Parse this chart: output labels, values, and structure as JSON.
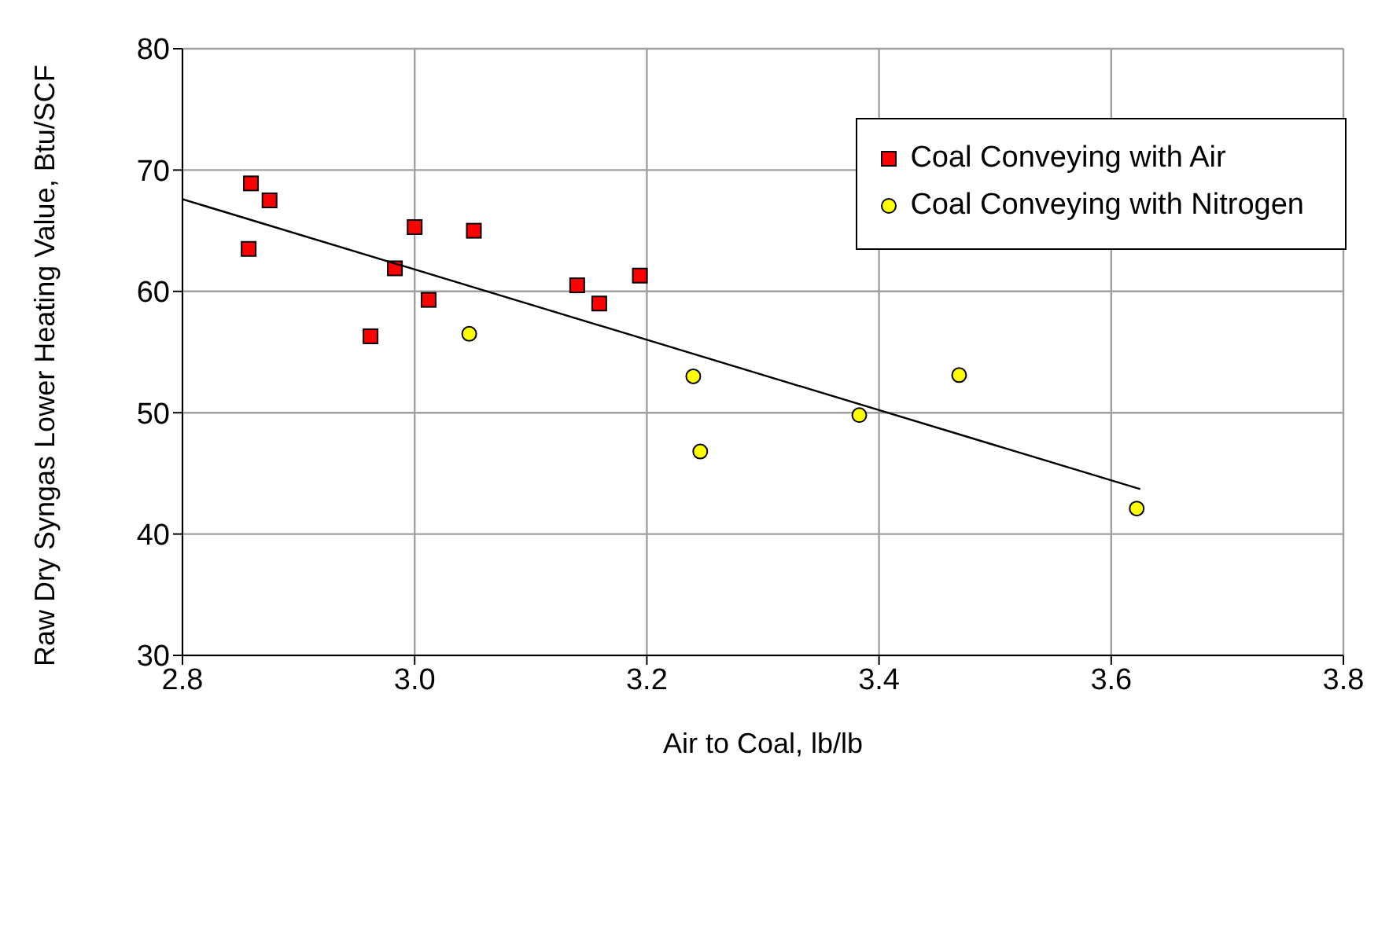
{
  "chart_data": {
    "type": "scatter",
    "xlabel": "Air to Coal, lb/lb",
    "ylabel": "Raw Dry Syngas Lower Heating Value, Btu/SCF",
    "xlim": [
      2.8,
      3.8
    ],
    "xticks": [
      {
        "value": 2.8,
        "label": "2.8"
      },
      {
        "value": 3.0,
        "label": "3.0"
      },
      {
        "value": 3.2,
        "label": "3.2"
      },
      {
        "value": 3.4,
        "label": "3.4"
      },
      {
        "value": 3.6,
        "label": "3.6"
      },
      {
        "value": 3.8,
        "label": "3.8"
      }
    ],
    "ylim": [
      30,
      80
    ],
    "yticks": [
      30,
      40,
      50,
      60,
      70,
      80
    ],
    "grid": true,
    "legend": "top right",
    "series": [
      {
        "name": "Coal Conveying with Air",
        "color": "#ff0000",
        "marker": "square",
        "x": [
          2.859,
          2.875,
          2.857,
          3.0,
          3.051,
          2.983,
          3.012,
          2.962,
          3.14,
          3.159,
          3.194
        ],
        "values": [
          68.9,
          67.5,
          63.5,
          65.3,
          65.0,
          61.9,
          59.3,
          56.3,
          60.5,
          59.0,
          61.3
        ]
      },
      {
        "name": "Coal Conveying with Nitrogen",
        "color": "#ffff00",
        "marker": "circle",
        "x": [
          3.047,
          3.24,
          3.246,
          3.383,
          3.469,
          3.622
        ],
        "values": [
          56.5,
          53.0,
          46.8,
          49.8,
          53.1,
          42.1
        ]
      },
      {
        "type": "line",
        "color": "#000000",
        "marker": "none",
        "x": [
          2.8,
          3.625
        ],
        "values": [
          67.6,
          43.7
        ]
      }
    ]
  }
}
